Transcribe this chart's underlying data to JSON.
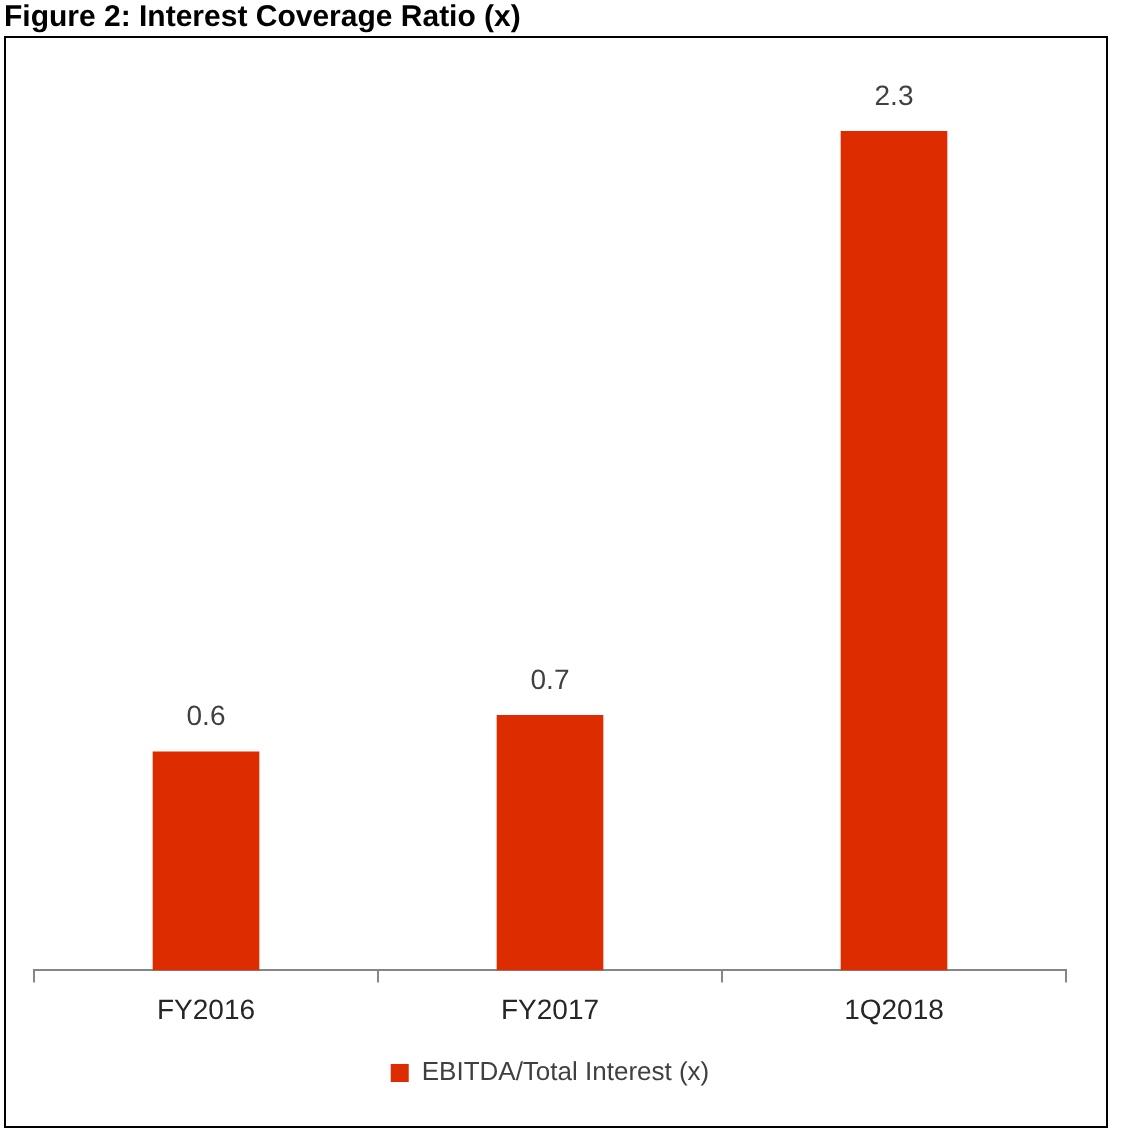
{
  "chart_data": {
    "type": "bar",
    "title": "Figure 2: Interest Coverage Ratio (x)",
    "categories": [
      "FY2016",
      "FY2017",
      "1Q2018"
    ],
    "series": [
      {
        "name": "EBITDA/Total Interest (x)",
        "color": "#dd2c00",
        "values": [
          0.6,
          0.7,
          2.3
        ]
      }
    ],
    "data_labels": true,
    "legend": "bottom",
    "grid": false
  }
}
